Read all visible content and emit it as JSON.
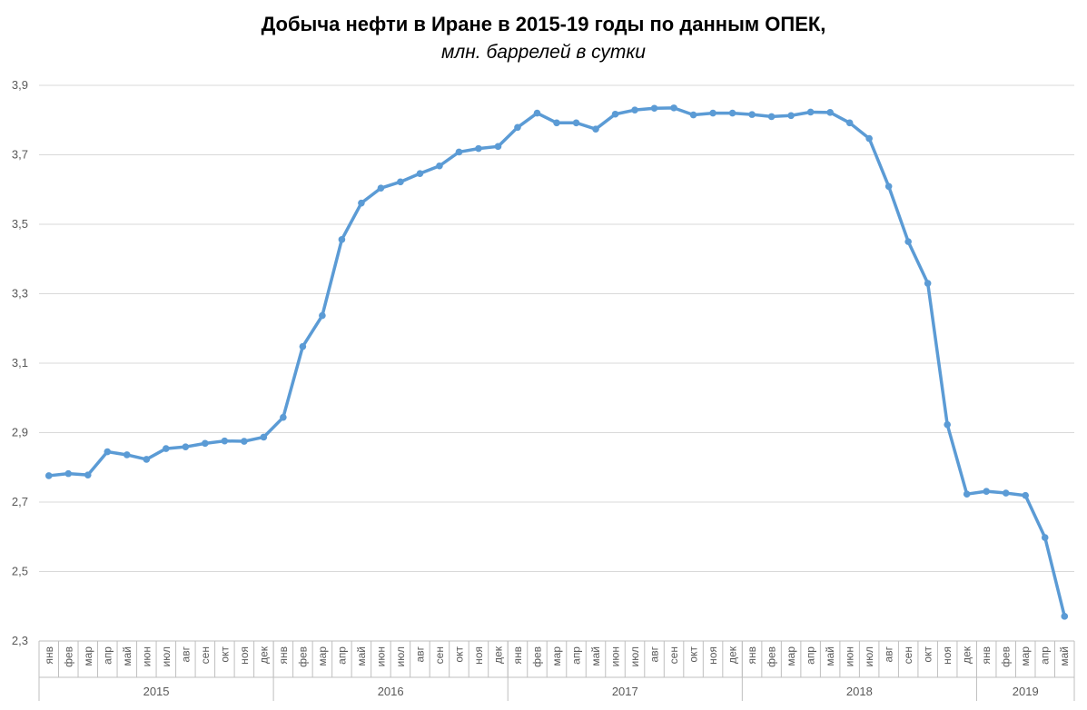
{
  "chart_data": {
    "type": "line",
    "title": "Добыча нефти в Иране в 2015-19 годы по данным ОПЕК,",
    "subtitle": "млн. баррелей в сутки",
    "xlabel": "",
    "ylabel": "",
    "ylim": [
      2.3,
      3.9
    ],
    "yticks": [
      "2,3",
      "2,5",
      "2,7",
      "2,9",
      "3,1",
      "3,3",
      "3,5",
      "3,7",
      "3,9"
    ],
    "grid": true,
    "legend": "none",
    "color": "#5B9BD5",
    "months": [
      "янв",
      "фев",
      "мар",
      "апр",
      "май",
      "июн",
      "июл",
      "авг",
      "сен",
      "окт",
      "ноя",
      "дек"
    ],
    "years": [
      {
        "label": "2015",
        "months": 12
      },
      {
        "label": "2016",
        "months": 12
      },
      {
        "label": "2017",
        "months": 12
      },
      {
        "label": "2018",
        "months": 12
      },
      {
        "label": "2019",
        "months": 5
      }
    ],
    "series": [
      {
        "values": [
          2.776,
          2.782,
          2.778,
          2.845,
          2.836,
          2.823,
          2.854,
          2.859,
          2.869,
          2.876,
          2.875,
          2.887,
          2.944,
          3.148,
          3.237,
          3.456,
          3.561,
          3.604,
          3.622,
          3.646,
          3.668,
          3.708,
          3.718,
          3.724,
          3.779,
          3.82,
          3.792,
          3.792,
          3.774,
          3.817,
          3.829,
          3.834,
          3.835,
          3.815,
          3.82,
          3.82,
          3.816,
          3.81,
          3.813,
          3.823,
          3.822,
          3.792,
          3.747,
          3.609,
          3.45,
          3.33,
          2.923,
          2.723,
          2.731,
          2.726,
          2.719,
          2.598,
          2.371
        ]
      }
    ]
  }
}
